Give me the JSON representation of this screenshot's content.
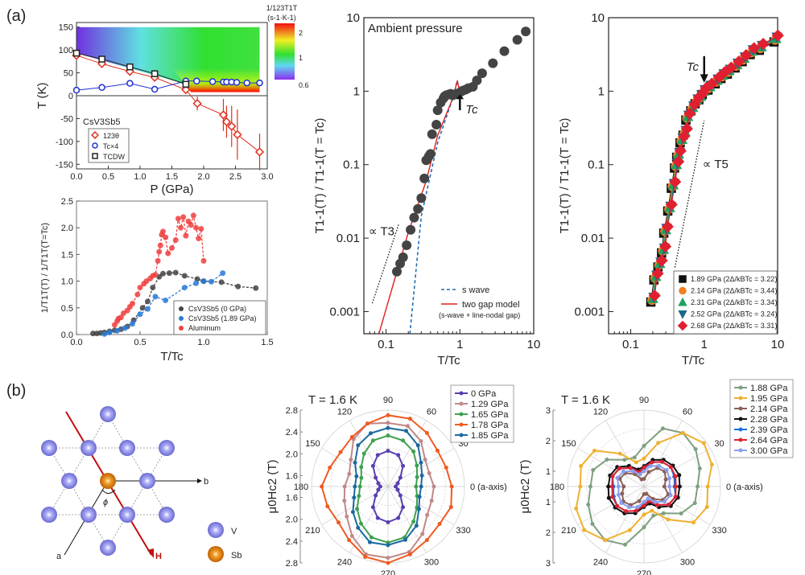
{
  "panel_labels": {
    "a": "(a)",
    "b": "(b)"
  },
  "chart_data": [
    {
      "id": "phase",
      "type": "scatter",
      "title": "",
      "xlabel": "P (GPa)",
      "ylabel": "T (K)",
      "xlim": [
        0,
        3.0
      ],
      "ylim": [
        -160,
        160
      ],
      "xticks": [
        "0.0",
        "0.5",
        "1.0",
        "1.5",
        "2.0",
        "2.5",
        "3.0"
      ],
      "yticks": [
        "150",
        "100",
        "50",
        "0",
        "-50",
        "-100",
        "-150"
      ],
      "legend_title": "CsV3Sb5",
      "colorbar": {
        "label": "1/123T1T",
        "units": "(s-1·K-1)",
        "ticks": [
          "2",
          "1",
          "0.6"
        ],
        "range": [
          0.6,
          2.3
        ]
      },
      "series": [
        {
          "name": "123θ",
          "color": "#e0301e",
          "marker": "diamond",
          "x": [
            0,
            0.4,
            0.84,
            1.23,
            1.72,
            1.9,
            2.31,
            2.36,
            2.44,
            2.53,
            2.88
          ],
          "y": [
            88,
            70,
            53,
            40,
            13,
            -17,
            -42,
            -57,
            -67,
            -85,
            -123
          ],
          "err": [
            0,
            0,
            0,
            0,
            0,
            15,
            35,
            35,
            45,
            55,
            40
          ]
        },
        {
          "name": "Tc×4",
          "color": "#2030d0",
          "marker": "circle",
          "x": [
            0,
            0.4,
            0.84,
            1.23,
            1.72,
            1.89,
            2.14,
            2.31,
            2.36,
            2.44,
            2.52,
            2.68,
            2.88
          ],
          "y": [
            12,
            18,
            27,
            14,
            32,
            32,
            31,
            30,
            30,
            30,
            29,
            28,
            28
          ]
        },
        {
          "name": "TCDW",
          "color": "#222222",
          "marker": "square",
          "x": [
            0,
            0.4,
            0.84,
            1.23,
            1.72
          ],
          "y": [
            93,
            80,
            63,
            48,
            25
          ]
        }
      ]
    },
    {
      "id": "relax-lin",
      "type": "scatter",
      "xlabel": "T/Tc",
      "ylabel": "1/T1T(T) / 1/T1T(T=Tc)",
      "xlim": [
        0,
        1.5
      ],
      "ylim": [
        0,
        2.5
      ],
      "xticks": [
        "0.0",
        "0.5",
        "1.0",
        "1.5"
      ],
      "yticks": [
        "0.0",
        "0.5",
        "1.0",
        "1.5",
        "2.0",
        "2.5"
      ],
      "legend": "lower-right",
      "series": [
        {
          "name": "CsV3Sb5 (0 GPa)",
          "color": "#444444",
          "x": [
            0.13,
            0.16,
            0.19,
            0.22,
            0.26,
            0.3,
            0.35,
            0.4,
            0.45,
            0.52,
            0.56,
            0.6,
            0.65,
            0.68,
            0.73,
            0.78,
            0.85,
            0.95,
            1.0,
            1.14,
            1.27,
            1.41
          ],
          "y": [
            0.02,
            0.02,
            0.03,
            0.04,
            0.06,
            0.08,
            0.1,
            0.15,
            0.27,
            0.5,
            0.62,
            0.88,
            1.08,
            1.14,
            1.15,
            1.16,
            1.1,
            1.04,
            1.0,
            0.98,
            0.9,
            0.87
          ]
        },
        {
          "name": "CsV3Sb5 (1.89 GPa)",
          "color": "#2a7ad8",
          "x": [
            0.22,
            0.26,
            0.32,
            0.38,
            0.44,
            0.5,
            0.56,
            0.62,
            0.7,
            0.85,
            0.94,
            1.0,
            1.06,
            1.15
          ],
          "y": [
            0.01,
            0.04,
            0.07,
            0.12,
            0.2,
            0.38,
            0.48,
            0.71,
            0.64,
            0.88,
            0.96,
            1.0,
            0.99,
            1.15
          ]
        },
        {
          "name": "Aluminum",
          "color": "#f04040",
          "x": [
            0.3,
            0.32,
            0.33,
            0.35,
            0.37,
            0.4,
            0.42,
            0.44,
            0.48,
            0.5,
            0.53,
            0.55,
            0.58,
            0.6,
            0.62,
            0.64,
            0.65,
            0.66,
            0.67,
            0.68,
            0.7,
            0.72,
            0.75,
            0.78,
            0.8,
            0.82,
            0.84,
            0.86,
            0.88,
            0.9,
            0.92,
            0.94,
            0.96,
            0.98,
            1.0
          ],
          "y": [
            0.18,
            0.25,
            0.3,
            0.32,
            0.4,
            0.45,
            0.52,
            0.58,
            0.75,
            0.88,
            0.95,
            1.0,
            1.05,
            1.1,
            1.12,
            1.38,
            1.55,
            1.67,
            1.87,
            1.93,
            1.82,
            1.52,
            1.62,
            1.77,
            2.17,
            2.0,
            2.2,
            1.85,
            2.12,
            2.05,
            2.23,
            2.0,
            1.8,
            1.98,
            1.38
          ]
        }
      ]
    },
    {
      "id": "relax-ambient",
      "type": "scatter",
      "annotation": "Ambient pressure",
      "tc_label": "Tc",
      "power_label": "∝ T3",
      "xlabel": "T/Tc",
      "ylabel": "T1-1(T) / T1-1(T = Tc)",
      "xscale": "log",
      "yscale": "log",
      "xlim": [
        0.05,
        10
      ],
      "ylim": [
        0.0005,
        10
      ],
      "xticks": [
        "0.1",
        "1",
        "10"
      ],
      "yticks": [
        "0.001",
        "0.01",
        "0.1",
        "1",
        "10"
      ],
      "legend": "lower-right",
      "lines": [
        {
          "name": "s wave",
          "style": "dashed",
          "color": "#1f6fb5"
        },
        {
          "name": "two gap model",
          "note": "(s-wave + line-nodal gap)",
          "style": "solid",
          "color": "#e0201e"
        }
      ],
      "series": [
        {
          "name": "data",
          "color": "#444444",
          "x": [
            0.14,
            0.155,
            0.17,
            0.19,
            0.215,
            0.24,
            0.27,
            0.3,
            0.33,
            0.35,
            0.38,
            0.4,
            0.42,
            0.48,
            0.5,
            0.55,
            0.6,
            0.62,
            0.65,
            0.7,
            0.75,
            0.8,
            0.9,
            1.0,
            1.1,
            1.2,
            1.3,
            1.5,
            1.7,
            2.0,
            2.8,
            4.0,
            6.0,
            7.8
          ],
          "y": [
            0.0035,
            0.0045,
            0.0055,
            0.008,
            0.013,
            0.019,
            0.025,
            0.035,
            0.065,
            0.115,
            0.13,
            0.14,
            0.26,
            0.35,
            0.55,
            0.7,
            0.8,
            0.85,
            0.88,
            0.9,
            0.92,
            0.88,
            0.92,
            0.96,
            1.02,
            1.05,
            1.1,
            1.15,
            1.4,
            1.75,
            2.4,
            3.5,
            5.0,
            6.5
          ]
        }
      ]
    },
    {
      "id": "relax-pressure",
      "type": "scatter",
      "tc_label": "Tc",
      "power_label": "∝ T5",
      "xlabel": "T/Tc",
      "ylabel": "T1-1(T) / T1-1(T = Tc)",
      "xscale": "log",
      "yscale": "log",
      "xlim": [
        0.05,
        10
      ],
      "ylim": [
        0.0005,
        10
      ],
      "xticks": [
        "0.1",
        "1",
        "10"
      ],
      "yticks": [
        "0.001",
        "0.01",
        "0.1",
        "1",
        "10"
      ],
      "legend": "lower-right",
      "series": [
        {
          "name": "1.89 GPa (2Δ/kBTc = 3.22)",
          "color": "#111111",
          "marker": "square"
        },
        {
          "name": "2.14 GPa (2Δ/kBTc = 3.44)",
          "color": "#f08020",
          "marker": "circle"
        },
        {
          "name": "2.31 GPa (2Δ/kBTc = 3.34)",
          "color": "#22a060",
          "marker": "triangle-up"
        },
        {
          "name": "2.52 GPa (2Δ/kBTc = 3.24)",
          "color": "#1a6a8a",
          "marker": "triangle-down"
        },
        {
          "name": "2.68 GPa (2Δ/kBTc = 3.31)",
          "color": "#e02030",
          "marker": "diamond"
        }
      ],
      "x": [
        0.2,
        0.22,
        0.25,
        0.28,
        0.3,
        0.34,
        0.38,
        0.42,
        0.45,
        0.5,
        0.55,
        0.6,
        0.7,
        0.8,
        0.9,
        1.0,
        1.2,
        1.5,
        1.8,
        2.2,
        2.8,
        3.5,
        4.5,
        6.0,
        9.5
      ],
      "y": [
        0.0015,
        0.003,
        0.0045,
        0.007,
        0.013,
        0.026,
        0.053,
        0.1,
        0.14,
        0.22,
        0.28,
        0.45,
        0.6,
        0.75,
        0.85,
        1.0,
        1.15,
        1.4,
        1.65,
        1.9,
        2.3,
        2.8,
        3.5,
        4.0,
        5.2
      ]
    },
    {
      "id": "polar-low",
      "type": "polar",
      "annotation": "T = 1.6 K",
      "ylabel": "μ0Hc2 (T)",
      "rticks": [
        "2.8",
        "2.4",
        "2.0",
        "1.6",
        "1.6",
        "2.0",
        "2.4",
        "2.8"
      ],
      "r_range": [
        1.3,
        2.8
      ],
      "angle_ticks": [
        "0 (a-axis)",
        "30",
        "60",
        "90",
        "120",
        "150",
        "180",
        "210",
        "240",
        "270",
        "300",
        "330"
      ],
      "legend": "top-right",
      "series": [
        {
          "name": "0 GPa",
          "color": "#5a3fb0",
          "r": [
            1.45,
            1.5,
            1.6,
            1.8,
            1.95,
            2.0,
            1.95,
            1.8,
            1.6,
            1.5,
            1.45,
            1.5,
            1.6,
            1.8,
            1.95,
            2.0,
            1.95,
            1.8,
            1.6,
            1.5
          ]
        },
        {
          "name": "1.29 GPa",
          "color": "#c08888",
          "r": [
            2.2,
            2.15,
            2.2,
            2.4,
            2.55,
            2.55,
            2.6,
            2.45,
            2.2,
            2.1,
            2.15,
            2.2,
            2.3,
            2.5,
            2.7,
            2.7,
            2.65,
            2.45,
            2.25,
            2.2
          ]
        },
        {
          "name": "1.65 GPa",
          "color": "#3fa050",
          "r": [
            1.85,
            1.9,
            2.0,
            2.15,
            2.25,
            2.3,
            2.25,
            2.1,
            1.95,
            1.85,
            1.85,
            1.9,
            2.05,
            2.2,
            2.35,
            2.4,
            2.35,
            2.15,
            2.0,
            1.9
          ]
        },
        {
          "name": "1.78 GPa",
          "color": "#f05a20",
          "r": [
            2.55,
            2.5,
            2.5,
            2.6,
            2.7,
            2.7,
            2.6,
            2.5,
            2.45,
            2.5,
            2.6,
            2.55,
            2.5,
            2.6,
            2.75,
            2.8,
            2.7,
            2.6,
            2.55,
            2.6
          ]
        },
        {
          "name": "1.85 GPa",
          "color": "#1a6aa0",
          "r": [
            1.95,
            2.0,
            2.1,
            2.3,
            2.45,
            2.45,
            2.4,
            2.3,
            2.1,
            1.95,
            1.95,
            2.0,
            2.15,
            2.3,
            2.45,
            2.45,
            2.4,
            2.25,
            2.05,
            1.95
          ]
        }
      ]
    },
    {
      "id": "polar-high",
      "type": "polar",
      "annotation": "T = 1.6 K",
      "ylabel": "μ0Hc2 (T)",
      "rticks": [
        "3",
        "2",
        "1",
        "1",
        "2",
        "3"
      ],
      "r_range": [
        0,
        3
      ],
      "angle_ticks": [
        "0 (a-axis)",
        "30",
        "60",
        "90",
        "120",
        "150",
        "180",
        "210",
        "240",
        "270",
        "300",
        "330"
      ],
      "legend": "top-right",
      "series": [
        {
          "name": "1.88 GPa",
          "color": "#7fa080",
          "r": [
            2.1,
            2.3,
            2.5,
            2.6,
            2.4,
            1.6,
            1.2,
            1.3,
            1.8,
            2.1,
            2.1,
            2.3,
            2.5,
            2.6,
            2.4,
            1.6,
            1.2,
            1.3,
            1.8,
            2.1
          ]
        },
        {
          "name": "1.95 GPa",
          "color": "#f0b030",
          "r": [
            2.5,
            2.8,
            2.9,
            2.6,
            1.8,
            1.1,
            1.0,
            1.6,
            2.4,
            2.6,
            2.5,
            2.8,
            2.9,
            2.6,
            1.8,
            1.1,
            1.0,
            1.6,
            2.4,
            2.6
          ]
        },
        {
          "name": "2.14 GPa",
          "color": "#8a6058",
          "r": [
            0.8,
            0.9,
            1.0,
            0.9,
            0.6,
            0.3,
            0.3,
            0.6,
            0.9,
            1.0,
            0.8,
            0.9,
            1.0,
            0.9,
            0.6,
            0.3,
            0.3,
            0.6,
            0.9,
            1.0
          ]
        },
        {
          "name": "2.28 GPa",
          "color": "#111111",
          "r": [
            1.4,
            1.45,
            1.4,
            1.3,
            1.1,
            0.8,
            0.7,
            1.0,
            1.3,
            1.4,
            1.4,
            1.45,
            1.4,
            1.3,
            1.1,
            0.8,
            0.7,
            1.0,
            1.3,
            1.4
          ]
        },
        {
          "name": "2.39 GPa",
          "color": "#1a70e0",
          "r": [
            1.2,
            1.25,
            1.3,
            1.2,
            1.0,
            0.7,
            0.6,
            0.9,
            1.2,
            1.3,
            1.2,
            1.25,
            1.3,
            1.2,
            1.0,
            0.7,
            0.6,
            0.9,
            1.2,
            1.3
          ]
        },
        {
          "name": "2.64 GPa",
          "color": "#e02030",
          "r": [
            1.25,
            1.3,
            1.3,
            1.2,
            1.0,
            0.75,
            0.6,
            0.9,
            1.2,
            1.3,
            1.25,
            1.3,
            1.3,
            1.2,
            1.0,
            0.75,
            0.6,
            0.9,
            1.2,
            1.3
          ]
        },
        {
          "name": "3.00 GPa",
          "color": "#8a9ef0",
          "r": [
            1.0,
            1.05,
            1.1,
            1.0,
            0.85,
            0.6,
            0.5,
            0.75,
            1.0,
            1.1,
            1.0,
            1.05,
            1.1,
            1.0,
            0.85,
            0.6,
            0.5,
            0.75,
            1.0,
            1.1
          ]
        }
      ]
    }
  ],
  "lattice": {
    "legend": [
      {
        "label": "V",
        "color": "#8a8ae0"
      },
      {
        "label": "Sb",
        "color": "#e08a10"
      }
    ],
    "axis_a": "a",
    "axis_b": "b",
    "field_label": "H",
    "angle_label": "ϕ"
  }
}
